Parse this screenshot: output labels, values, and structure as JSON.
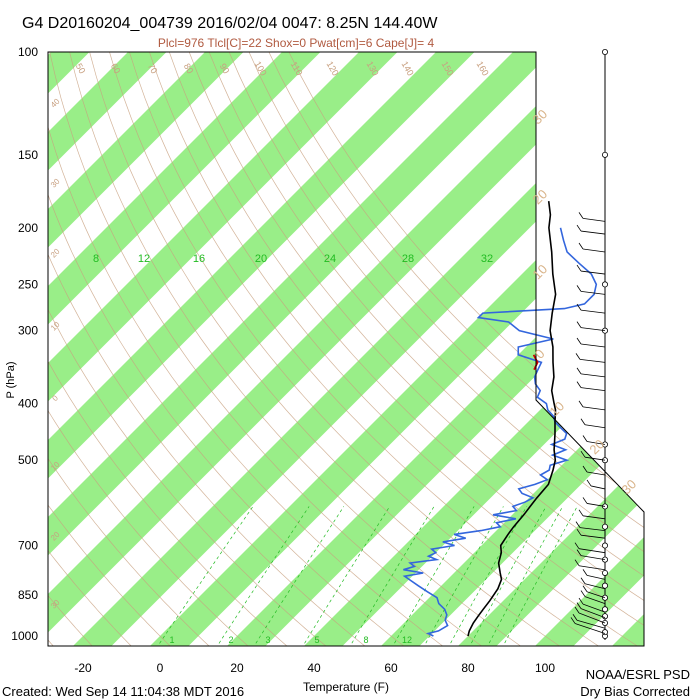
{
  "header": {
    "title": "G4 D20160204_004739 2016/02/04 0047:  8.25N 144.40W",
    "subtitle": "Plcl=976 Tlcl[C]=22 Shox=0 Pwat[cm]=6 Cape[J]= 4"
  },
  "footer": {
    "created": "Created: Wed Sep 14 11:04:38 MDT 2016",
    "org": "NOAA/ESRL PSD",
    "note": "Dry Bias Corrected"
  },
  "colors": {
    "isotherm_band": "#99ee88",
    "temperature": "#000000",
    "dewpoint": "#3366dd",
    "parcel": "#cc0000",
    "dry_adiabat": "#c8a080",
    "mixing_ratio": "#22bb22",
    "frame": "#000000"
  },
  "chart_data": {
    "type": "line",
    "title": "G4 D20160204_004739 2016/02/04 0047:  8.25N 144.40W",
    "subtitle": "Plcl=976 Tlcl[C]=22 Shox=0 Pwat[cm]=6 Cape[J]= 4",
    "xlabel": "Temperature (F)",
    "ylabel": "P (hPa)",
    "xlim": [
      -30,
      110
    ],
    "ylim": [
      1000,
      100
    ],
    "y_scale": "log",
    "grid": "skew-T isotherm bands, dry adiabats, moist adiabats, mixing-ratio lines",
    "x_ticks": [
      "-20",
      "0",
      "20",
      "40",
      "60",
      "80",
      "100"
    ],
    "y_ticks": [
      "100",
      "150",
      "200",
      "250",
      "300",
      "400",
      "500",
      "700",
      "850",
      "1000"
    ],
    "mixing_ratio_labels": [
      "8",
      "12",
      "16",
      "20",
      "24",
      "28",
      "32"
    ],
    "mixing_ratio_low_labels": [
      "1",
      "2",
      "3",
      "5",
      "8",
      "12"
    ],
    "dry_adiabat_labels": [
      "50",
      "60",
      "70",
      "80",
      "90",
      "100",
      "110",
      "120",
      "130",
      "140",
      "150",
      "160"
    ],
    "moist_labels": [
      "30",
      "20",
      "10",
      "0",
      "10",
      "20",
      "30"
    ],
    "left_edge_labels": [
      "40",
      "30",
      "20",
      "10",
      "0",
      "10",
      "20",
      "30"
    ],
    "series": [
      {
        "name": "temperature",
        "p": [
          1000,
          980,
          950,
          925,
          900,
          870,
          850,
          830,
          800,
          780,
          750,
          720,
          700,
          670,
          650,
          620,
          600,
          580,
          550,
          520,
          500,
          480,
          450,
          430,
          410,
          400,
          380,
          360,
          340,
          320,
          300,
          280,
          260,
          240,
          220,
          200,
          190,
          180
        ],
        "t": [
          80,
          79,
          78,
          77.5,
          77,
          76.5,
          76,
          75.5,
          74,
          72,
          69,
          67,
          65,
          64,
          63.5,
          63,
          62.5,
          62,
          61.5,
          59,
          57,
          54,
          50,
          47,
          44,
          42,
          38,
          35,
          31,
          27,
          22,
          18,
          14,
          8,
          2,
          -5,
          -8,
          -12
        ]
      },
      {
        "name": "dewpoint",
        "p": [
          1000,
          990,
          980,
          960,
          940,
          920,
          900,
          880,
          860,
          840,
          820,
          800,
          790,
          780,
          770,
          760,
          750,
          740,
          730,
          720,
          710,
          700,
          690,
          680,
          670,
          660,
          650,
          640,
          630,
          620,
          610,
          600,
          590,
          580,
          570,
          560,
          550,
          540,
          530,
          520,
          510,
          500,
          490,
          480,
          470,
          460,
          450,
          440,
          430,
          420,
          410,
          400,
          390,
          380,
          370,
          360,
          350,
          340,
          330,
          320,
          310,
          300,
          290,
          285,
          280,
          275,
          270,
          260,
          250,
          240,
          230,
          220,
          210,
          200
        ],
        "t": [
          71,
          69,
          71,
          72,
          70,
          69,
          67,
          64,
          62,
          58,
          54,
          50,
          48,
          52,
          46,
          48,
          46,
          52,
          49,
          50,
          48,
          53,
          49,
          54,
          50,
          56,
          60,
          58,
          62,
          55,
          60,
          58,
          60,
          61,
          57,
          55,
          58,
          60,
          57,
          58,
          57,
          60,
          55,
          57,
          52,
          54,
          53,
          50,
          47,
          45,
          42,
          40,
          36,
          35,
          32,
          30,
          29,
          28,
          20,
          18,
          25,
          14,
          9,
          0,
          0,
          20,
          24,
          24,
          22,
          18,
          12,
          6,
          2,
          -2
        ]
      },
      {
        "name": "parcel",
        "p": [
          350,
          340,
          330
        ],
        "t": [
          28,
          27,
          24
        ]
      }
    ],
    "wind_barbs": {
      "description": "right-side vertical column of wind barbs from 1000 to 100 hPa"
    }
  }
}
